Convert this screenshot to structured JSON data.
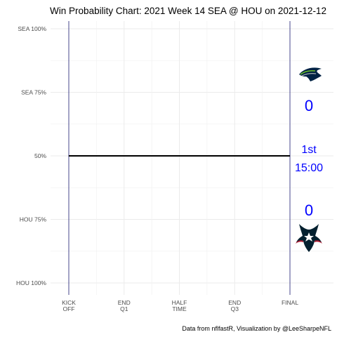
{
  "chart_data": {
    "type": "line",
    "title": "Win Probability Chart: 2021 Week 14 SEA @ HOU on 2021-12-12",
    "caption": "Data from nflfastR, Visualization by @LeeSharpeNFL",
    "x_ticks": [
      "KICK\nOFF",
      "END\nQ1",
      "HALF\nTIME",
      "END\nQ3",
      "FINAL"
    ],
    "xlim": [
      0,
      3600
    ],
    "y_ticks": [
      {
        "value": 1.0,
        "label": "SEA 100%"
      },
      {
        "value": 0.75,
        "label": "SEA 75%"
      },
      {
        "value": 0.5,
        "label": "50%"
      },
      {
        "value": 0.25,
        "label": "HOU 75%"
      },
      {
        "value": 0.0,
        "label": "HOU 100%"
      }
    ],
    "ylim": [
      0,
      1
    ],
    "grid": true,
    "series": [
      {
        "x": [
          0,
          3600
        ],
        "y": [
          0.5,
          0.5
        ],
        "color": "#000000"
      }
    ],
    "boundary_color": "#191970",
    "away": {
      "team": "SEA",
      "score": "0",
      "logo": "seahawks-logo"
    },
    "home": {
      "team": "HOU",
      "score": "0",
      "logo": "texans-logo"
    },
    "status": {
      "quarter": "1st",
      "clock": "15:00"
    },
    "text_color": "#0000ff"
  }
}
